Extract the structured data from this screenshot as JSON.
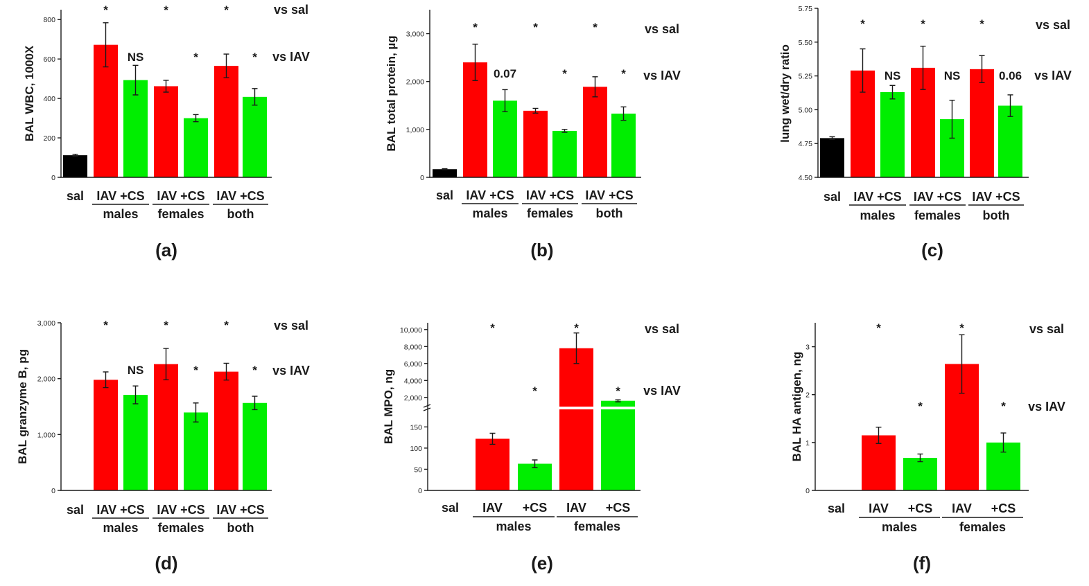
{
  "colors": {
    "sal": "#000000",
    "IAV": "#ff0000",
    "CS": "#00ee00"
  },
  "comparison_labels": {
    "vs_sal": "vs sal",
    "vs_iav": "vs IAV"
  },
  "chart_data": [
    {
      "id": "a",
      "panel_label": "(a)",
      "type": "bar",
      "ylabel": "BAL WBC, 1000X",
      "ylim": [
        0,
        850
      ],
      "yticks": [
        0,
        200,
        400,
        600,
        800
      ],
      "ytick_labels": [
        "0",
        "200",
        "400",
        "600",
        "800"
      ],
      "categories": [
        "sal",
        "IAV",
        "+CS",
        "IAV",
        "+CS",
        "IAV",
        "+CS"
      ],
      "category_labels": [
        "sal",
        "IAV +CS",
        "IAV +CS",
        "IAV +CS"
      ],
      "groups": [
        "males",
        "females",
        "both"
      ],
      "values": [
        112,
        672,
        493,
        462,
        300,
        565,
        408
      ],
      "errors": [
        5,
        112,
        75,
        30,
        18,
        60,
        42
      ],
      "vs_sal": [
        "",
        "*",
        "",
        "*",
        "",
        "*",
        ""
      ],
      "vs_iav": [
        "",
        "",
        "NS",
        "",
        "*",
        "",
        "*"
      ]
    },
    {
      "id": "b",
      "panel_label": "(b)",
      "type": "bar",
      "ylabel": "BAL total protein, µg",
      "ylim": [
        0,
        3500
      ],
      "yticks": [
        0,
        1000,
        2000,
        3000
      ],
      "ytick_labels": [
        "0",
        "1,000",
        "2,000",
        "3,000"
      ],
      "categories": [
        "sal",
        "IAV",
        "+CS",
        "IAV",
        "+CS",
        "IAV",
        "+CS"
      ],
      "category_labels": [
        "sal",
        "IAV +CS",
        "IAV +CS",
        "IAV +CS"
      ],
      "groups": [
        "males",
        "females",
        "both"
      ],
      "values": [
        170,
        2400,
        1600,
        1390,
        970,
        1890,
        1330
      ],
      "errors": [
        10,
        380,
        230,
        50,
        30,
        210,
        140
      ],
      "vs_sal": [
        "",
        "*",
        "",
        "*",
        "",
        "*",
        ""
      ],
      "vs_iav": [
        "",
        "",
        "0.07",
        "",
        "*",
        "",
        "*"
      ]
    },
    {
      "id": "c",
      "panel_label": "(c)",
      "type": "bar",
      "ylabel": "lung wet/dry ratio",
      "ylim": [
        4.5,
        5.75
      ],
      "yticks": [
        4.5,
        4.75,
        5.0,
        5.25,
        5.5,
        5.75
      ],
      "ytick_labels": [
        "4.50",
        "4.75",
        "5.00",
        "5.25",
        "5.50",
        "5.75"
      ],
      "categories": [
        "sal",
        "IAV",
        "+CS",
        "IAV",
        "+CS",
        "IAV",
        "+CS"
      ],
      "category_labels": [
        "sal",
        "IAV +CS",
        "IAV +CS",
        "IAV +CS"
      ],
      "groups": [
        "males",
        "females",
        "both"
      ],
      "values": [
        4.79,
        5.29,
        5.13,
        5.31,
        4.93,
        5.3,
        5.03
      ],
      "errors": [
        0.01,
        0.16,
        0.05,
        0.16,
        0.14,
        0.1,
        0.08
      ],
      "vs_sal": [
        "",
        "*",
        "",
        "*",
        "",
        "*",
        ""
      ],
      "vs_iav": [
        "",
        "",
        "NS",
        "",
        "NS",
        "",
        "0.06"
      ]
    },
    {
      "id": "d",
      "panel_label": "(d)",
      "type": "bar",
      "ylabel": "BAL granzyme B, pg",
      "ylim": [
        0,
        3000
      ],
      "yticks": [
        0,
        1000,
        2000,
        3000
      ],
      "ytick_labels": [
        "0",
        "1,000",
        "2,000",
        "3,000"
      ],
      "categories": [
        "sal",
        "IAV",
        "+CS",
        "IAV",
        "+CS",
        "IAV",
        "+CS"
      ],
      "category_labels": [
        "sal",
        "IAV +CS",
        "IAV +CS",
        "IAV +CS"
      ],
      "groups": [
        "males",
        "females",
        "both"
      ],
      "values": [
        0,
        1980,
        1710,
        2260,
        1395,
        2125,
        1565
      ],
      "errors": [
        0,
        140,
        160,
        280,
        170,
        150,
        120
      ],
      "vs_sal": [
        "",
        "*",
        "",
        "*",
        "",
        "*",
        ""
      ],
      "vs_iav": [
        "",
        "",
        "NS",
        "",
        "*",
        "",
        "*"
      ]
    },
    {
      "id": "e",
      "panel_label": "(e)",
      "type": "bar",
      "ylabel": "BAL MPO, ng",
      "broken_axis": true,
      "lower_ylim": [
        0,
        180
      ],
      "upper_ylim": [
        1000,
        10800
      ],
      "yticks_lower": [
        0,
        50,
        100,
        150
      ],
      "ytick_labels_lower": [
        "0",
        "50",
        "100",
        "150"
      ],
      "yticks_upper": [
        2000,
        4000,
        6000,
        8000,
        10000
      ],
      "ytick_labels_upper": [
        "2,000",
        "4,000",
        "6,000",
        "8,000",
        "10,000"
      ],
      "categories": [
        "sal",
        "IAV",
        "+CS",
        "IAV",
        "+CS"
      ],
      "category_labels": [
        "sal",
        "IAV",
        "+CS",
        "IAV",
        "+CS"
      ],
      "groups": [
        "males",
        "females"
      ],
      "values": [
        0,
        122,
        63,
        7800,
        1600
      ],
      "errors": [
        0,
        13,
        9,
        1800,
        120
      ],
      "vs_sal": [
        "",
        "*",
        "",
        "*",
        ""
      ],
      "vs_iav": [
        "",
        "",
        "*",
        "",
        "*"
      ]
    },
    {
      "id": "f",
      "panel_label": "(f)",
      "type": "bar",
      "ylabel": "BAL HA antigen, ng",
      "ylim": [
        0,
        3.5
      ],
      "yticks": [
        0,
        1,
        2,
        3
      ],
      "ytick_labels": [
        "0",
        "1",
        "2",
        "3"
      ],
      "categories": [
        "sal",
        "IAV",
        "+CS",
        "IAV",
        "+CS"
      ],
      "category_labels": [
        "sal",
        "IAV",
        "+CS",
        "IAV",
        "+CS"
      ],
      "groups": [
        "males",
        "females"
      ],
      "values": [
        0,
        1.15,
        0.68,
        2.64,
        1.0
      ],
      "errors": [
        0,
        0.17,
        0.08,
        0.61,
        0.2
      ],
      "vs_sal": [
        "",
        "*",
        "",
        "*",
        ""
      ],
      "vs_iav": [
        "",
        "",
        "*",
        "",
        "*"
      ]
    }
  ]
}
